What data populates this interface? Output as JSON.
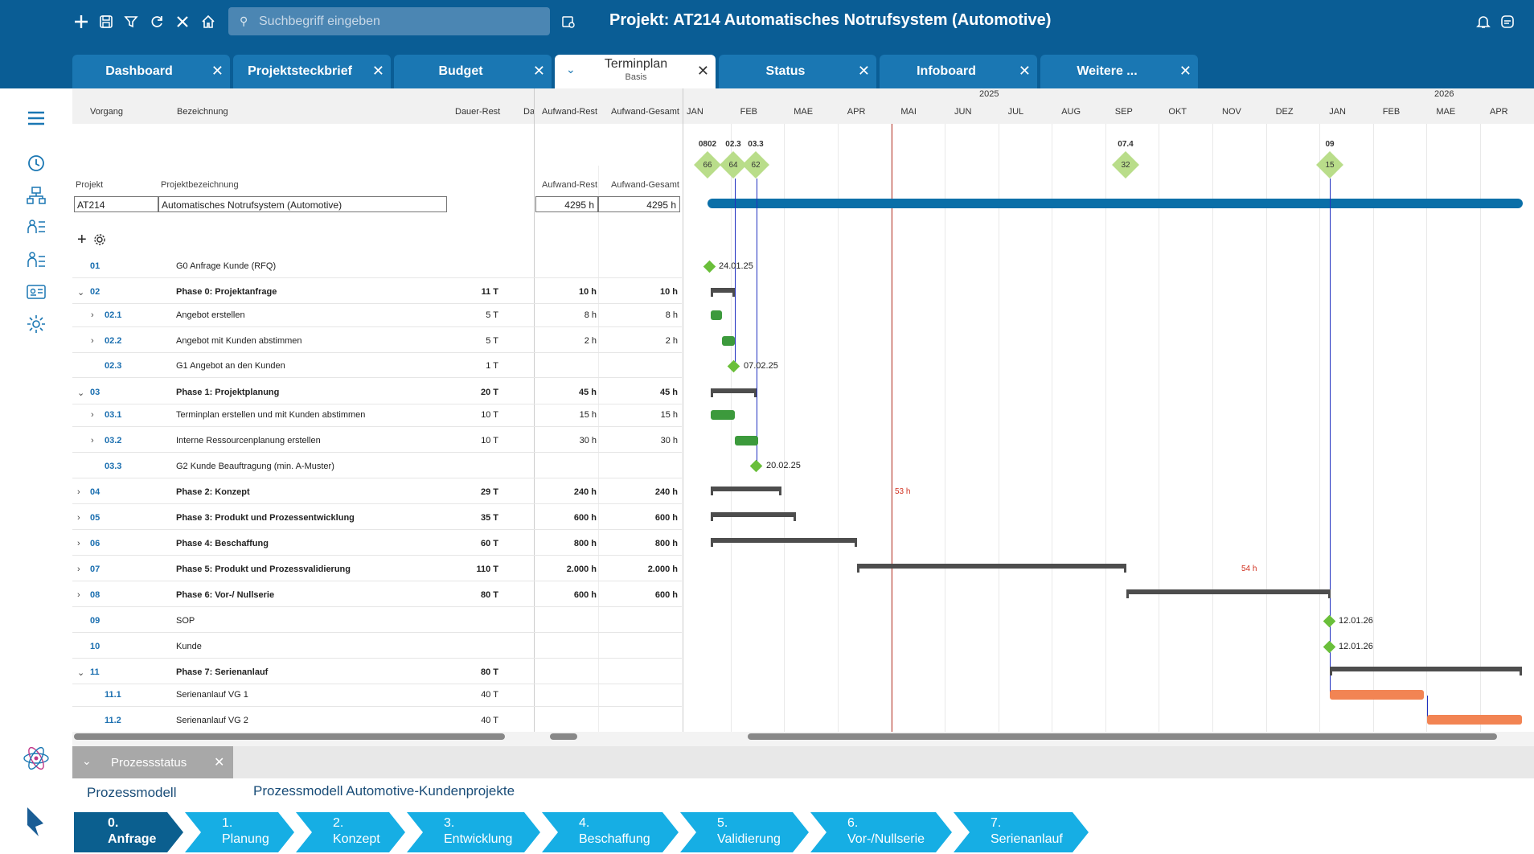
{
  "header": {
    "search_placeholder": "Suchbegriff eingeben",
    "title": "Projekt: AT214 Automatisches Notrufsystem (Automotive)"
  },
  "tabs": [
    {
      "label": "Dashboard"
    },
    {
      "label": "Projektsteckbrief"
    },
    {
      "label": "Budget"
    },
    {
      "label": "Terminplan",
      "sub": "Basis"
    },
    {
      "label": "Status"
    },
    {
      "label": "Infoboard"
    },
    {
      "label": "Weitere ..."
    }
  ],
  "table": {
    "col_vorgang": "Vorgang",
    "col_bezeichnung": "Bezeichnung",
    "col_dauer": "Dauer-Rest",
    "col_da": "Da",
    "col_aufwand_rest": "Aufwand-Rest",
    "col_aufwand_gesamt": "Aufwand-Gesamt",
    "project_label": "Projekt",
    "project_desc_label": "Projektbezeichnung",
    "project_id": "AT214",
    "project_name": "Automatisches Notrufsystem (Automotive)",
    "project_rest": "4295 h",
    "project_total": "4295 h",
    "rows": [
      {
        "id": "01",
        "name": "G0 Anfrage Kunde (RFQ)",
        "dauer": "",
        "rest": "",
        "total": ""
      },
      {
        "id": "02",
        "name": "Phase 0: Projektanfrage",
        "dauer": "11 T",
        "rest": "10 h",
        "total": "10 h"
      },
      {
        "id": "02.1",
        "name": "Angebot erstellen",
        "dauer": "5 T",
        "rest": "8 h",
        "total": "8 h"
      },
      {
        "id": "02.2",
        "name": "Angebot mit Kunden abstimmen",
        "dauer": "5 T",
        "rest": "2 h",
        "total": "2 h"
      },
      {
        "id": "02.3",
        "name": "G1 Angebot an den Kunden",
        "dauer": "1 T",
        "rest": "",
        "total": ""
      },
      {
        "id": "03",
        "name": "Phase 1: Projektplanung",
        "dauer": "20 T",
        "rest": "45 h",
        "total": "45 h"
      },
      {
        "id": "03.1",
        "name": "Terminplan erstellen und mit Kunden abstimmen",
        "dauer": "10 T",
        "rest": "15 h",
        "total": "15 h"
      },
      {
        "id": "03.2",
        "name": "Interne Ressourcenplanung erstellen",
        "dauer": "10 T",
        "rest": "30 h",
        "total": "30 h"
      },
      {
        "id": "03.3",
        "name": "G2   Kunde Beauftragung (min. A-Muster)",
        "dauer": "",
        "rest": "",
        "total": ""
      },
      {
        "id": "04",
        "name": "Phase 2: Konzept",
        "dauer": "29 T",
        "rest": "240 h",
        "total": "240 h"
      },
      {
        "id": "05",
        "name": "Phase 3: Produkt und Prozessentwicklung",
        "dauer": "35 T",
        "rest": "600 h",
        "total": "600 h"
      },
      {
        "id": "06",
        "name": "Phase 4: Beschaffung",
        "dauer": "60 T",
        "rest": "800 h",
        "total": "800 h"
      },
      {
        "id": "07",
        "name": "Phase 5: Produkt und Prozessvalidierung",
        "dauer": "110 T",
        "rest": "2.000 h",
        "total": "2.000 h"
      },
      {
        "id": "08",
        "name": "Phase 6: Vor-/ Nullserie",
        "dauer": "80 T",
        "rest": "600 h",
        "total": "600 h"
      },
      {
        "id": "09",
        "name": "SOP",
        "dauer": "",
        "rest": "",
        "total": ""
      },
      {
        "id": "10",
        "name": "Kunde",
        "dauer": "",
        "rest": "",
        "total": ""
      },
      {
        "id": "11",
        "name": "Phase 7: Serienanlauf",
        "dauer": "80 T",
        "rest": "",
        "total": ""
      },
      {
        "id": "11.1",
        "name": "Serienanlauf VG 1",
        "dauer": "40 T",
        "rest": "",
        "total": ""
      },
      {
        "id": "11.2",
        "name": "Serienanlauf VG 2",
        "dauer": "40 T",
        "rest": "",
        "total": ""
      }
    ]
  },
  "gantt": {
    "year_2025": "2025",
    "year_2026": "2026",
    "months": [
      "JAN",
      "FEB",
      "MAE",
      "APR",
      "MAI",
      "JUN",
      "JUL",
      "AUG",
      "SEP",
      "OKT",
      "NOV",
      "DEZ",
      "JAN",
      "FEB",
      "MAE",
      "APR"
    ],
    "top_milestones": [
      {
        "label": "0802",
        "count": "66"
      },
      {
        "label": "02.3",
        "count": "64"
      },
      {
        "label": "03.3",
        "count": "62"
      },
      {
        "label": "07.4",
        "count": "32"
      },
      {
        "label": "09",
        "count": "15"
      }
    ],
    "milestone_dates": {
      "m01": "24.01.25",
      "m023": "07.02.25",
      "m033": "20.02.25",
      "m09": "12.01.26",
      "m10": "12.01.26"
    },
    "load_labels": {
      "a": "53 h",
      "b": "54 h"
    }
  },
  "process": {
    "panel_title": "Prozessstatus",
    "model_label": "Prozessmodell",
    "model_value": "Prozessmodell Automotive-Kundenprojekte",
    "steps": [
      {
        "num": "0.",
        "name": "Anfrage"
      },
      {
        "num": "1.",
        "name": "Planung"
      },
      {
        "num": "2.",
        "name": "Konzept"
      },
      {
        "num": "3.",
        "name": "Entwicklung"
      },
      {
        "num": "4.",
        "name": "Beschaffung"
      },
      {
        "num": "5.",
        "name": "Validierung"
      },
      {
        "num": "6.",
        "name": "Vor-/Nullserie"
      },
      {
        "num": "7.",
        "name": "Serienanlauf"
      }
    ]
  },
  "colors": {
    "brand": "#0a5d95",
    "tab": "#1a77b3",
    "step": "#16aee4",
    "step_active": "#0b5f8f",
    "milestone": "#6abf3a",
    "bar_green": "#3c9a3c",
    "bar_orange": "#f28453"
  }
}
